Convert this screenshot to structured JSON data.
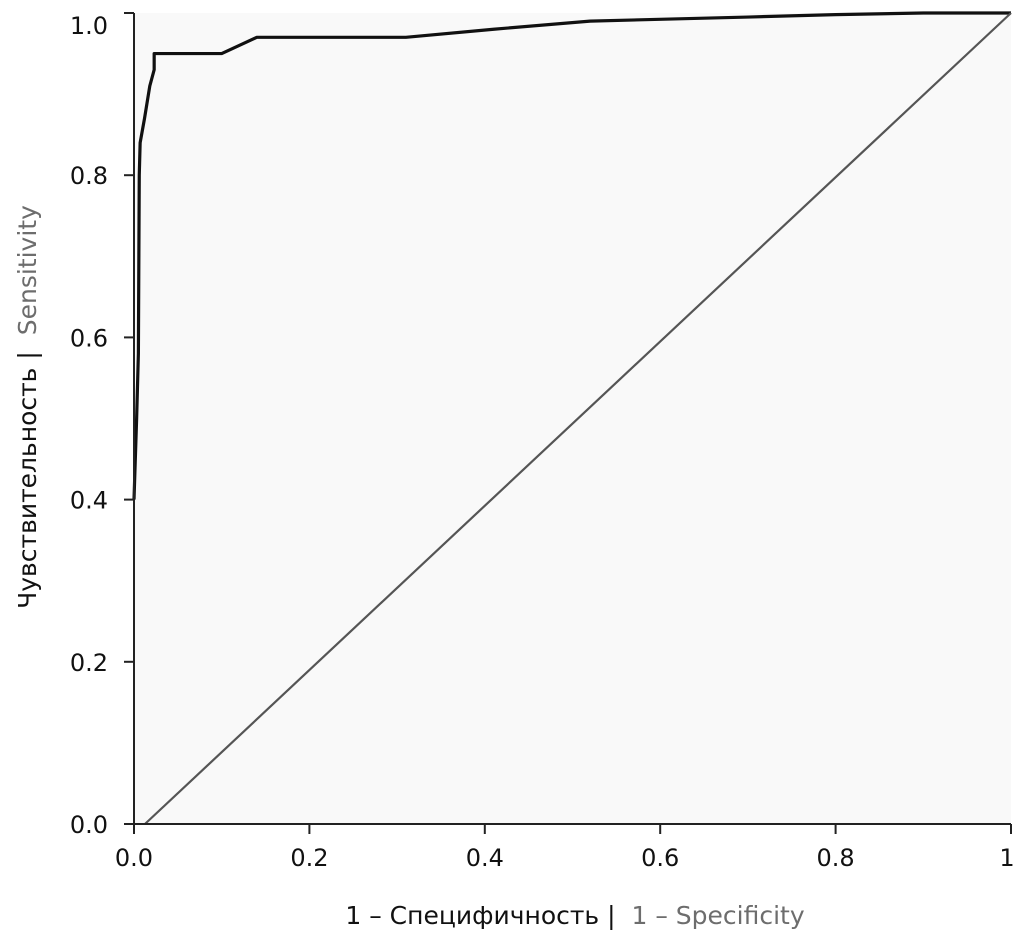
{
  "chart_data": {
    "type": "line",
    "xlabel": {
      "primary": "1 – Специфичность |",
      "secondary": "1 – Specificity"
    },
    "ylabel": {
      "primary": "Чувствительность |",
      "secondary": "Sensitivity"
    },
    "xlim": [
      0,
      1
    ],
    "ylim": [
      0,
      1
    ],
    "x_ticks": [
      {
        "value": 0.0,
        "label": "0.0"
      },
      {
        "value": 0.2,
        "label": "0.2"
      },
      {
        "value": 0.4,
        "label": "0.4"
      },
      {
        "value": 0.6,
        "label": "0.6"
      },
      {
        "value": 0.8,
        "label": "0.8"
      },
      {
        "value": 1.0,
        "label": "1"
      }
    ],
    "y_ticks": [
      {
        "value": 0.0,
        "label": "0.0"
      },
      {
        "value": 0.2,
        "label": "0.2"
      },
      {
        "value": 0.4,
        "label": "0.4"
      },
      {
        "value": 0.6,
        "label": "0.6"
      },
      {
        "value": 0.8,
        "label": "0.8"
      },
      {
        "value": 1.0,
        "label": "1.0"
      }
    ],
    "grid": false,
    "series": [
      {
        "x": [
          0.0,
          0.003,
          0.005,
          0.006,
          0.007,
          0.012,
          0.018,
          0.023,
          0.023,
          0.1,
          0.12,
          0.14,
          0.31,
          0.41,
          0.52,
          0.7,
          0.8,
          0.9,
          1.0
        ],
        "y": [
          0.4,
          0.5,
          0.58,
          0.8,
          0.84,
          0.87,
          0.91,
          0.93,
          0.95,
          0.95,
          0.96,
          0.97,
          0.97,
          0.98,
          0.99,
          0.995,
          0.998,
          1.0,
          1.0
        ],
        "color": "#111111"
      },
      {
        "x": [
          0.0125,
          1.0
        ],
        "y": [
          0.0,
          1.0
        ],
        "color": "#555555"
      }
    ],
    "colors": {
      "plot_background": "#f9f9f9",
      "axis": "#222222",
      "secondary_text": "#6d6d6d"
    }
  }
}
